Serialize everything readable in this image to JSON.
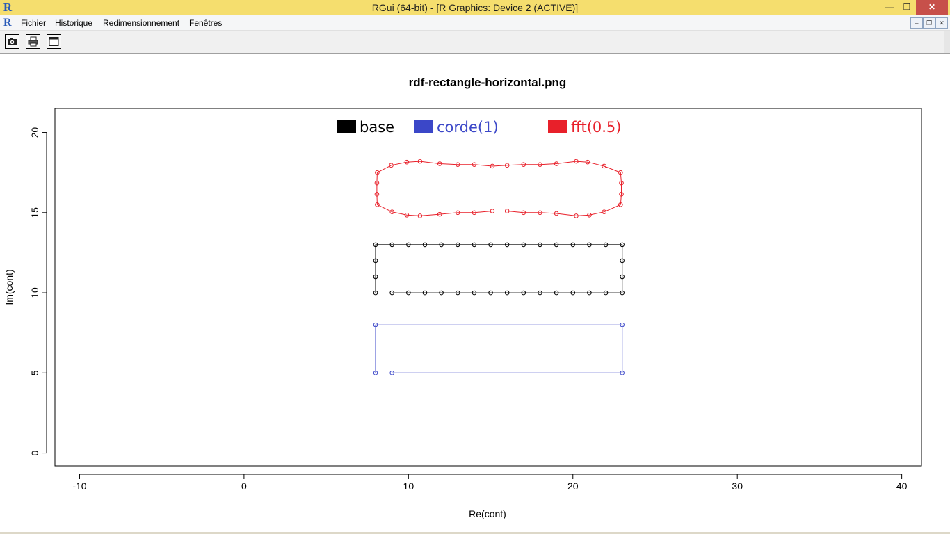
{
  "window": {
    "title": "RGui (64-bit) - [R Graphics: Device 2 (ACTIVE)]",
    "logo": "R",
    "minimize_icon": "minimize-icon",
    "maximize_icon": "restore-icon",
    "close_icon": "close-icon"
  },
  "menu": {
    "logo": "R",
    "items": [
      "Fichier",
      "Historique",
      "Redimensionnement",
      "Fenêtres"
    ]
  },
  "toolbar": {
    "buttons": [
      {
        "name": "copy-metafile-button",
        "icon": "camera-icon"
      },
      {
        "name": "print-button",
        "icon": "printer-icon"
      },
      {
        "name": "window-button",
        "icon": "window-icon"
      }
    ]
  },
  "colors": {
    "base": "#000000",
    "corde": "#3b47c8",
    "fft": "#e8202a",
    "titlebar": "#f5de6e"
  },
  "chart_data": {
    "type": "scatter",
    "title": "rdf-rectangle-horizontal.png",
    "xlabel": "Re(cont)",
    "ylabel": "Im(cont)",
    "xlim": [
      -11.5,
      41.2
    ],
    "ylim": [
      -0.8,
      21.5
    ],
    "xticks": [
      -10,
      0,
      10,
      20,
      30,
      40
    ],
    "yticks": [
      0,
      5,
      10,
      15,
      20
    ],
    "legend_position": "top",
    "series": [
      {
        "name": "base",
        "color": "#000000",
        "closed": false,
        "x": [
          9,
          10,
          11,
          12,
          13,
          14,
          15,
          16,
          17,
          18,
          19,
          20,
          21,
          22,
          23,
          23,
          23,
          23,
          22,
          21,
          20,
          19,
          18,
          17,
          16,
          15,
          14,
          13,
          12,
          11,
          10,
          9,
          8,
          8,
          8,
          8
        ],
        "y": [
          10,
          10,
          10,
          10,
          10,
          10,
          10,
          10,
          10,
          10,
          10,
          10,
          10,
          10,
          10,
          11,
          12,
          13,
          13,
          13,
          13,
          13,
          13,
          13,
          13,
          13,
          13,
          13,
          13,
          13,
          13,
          13,
          13,
          12,
          11,
          10
        ]
      },
      {
        "name": "corde(1)",
        "color": "#3b47c8",
        "closed": false,
        "x": [
          9,
          23,
          23,
          8,
          8
        ],
        "y": [
          5,
          5,
          8,
          8,
          5
        ]
      },
      {
        "name": "fft(0.5)",
        "color": "#e8202a",
        "closed": true,
        "x": [
          9.0,
          9.9,
          10.7,
          11.9,
          13.0,
          14.0,
          15.1,
          16.0,
          17.0,
          18.0,
          19.0,
          20.2,
          21.0,
          21.9,
          22.9,
          22.95,
          22.95,
          22.9,
          21.9,
          20.9,
          20.2,
          19.0,
          18.0,
          17.0,
          16.0,
          15.1,
          14.0,
          13.0,
          11.9,
          10.7,
          9.9,
          8.95,
          8.1,
          8.08,
          8.08,
          8.1
        ],
        "y": [
          15.05,
          14.85,
          14.8,
          14.9,
          15.0,
          15.0,
          15.1,
          15.1,
          15.0,
          15.0,
          14.95,
          14.8,
          14.85,
          15.05,
          15.5,
          16.15,
          16.85,
          17.5,
          17.9,
          18.15,
          18.2,
          18.05,
          18.0,
          18.0,
          17.95,
          17.9,
          18.0,
          18.0,
          18.05,
          18.2,
          18.15,
          17.95,
          17.5,
          16.85,
          16.15,
          15.5
        ]
      }
    ]
  }
}
